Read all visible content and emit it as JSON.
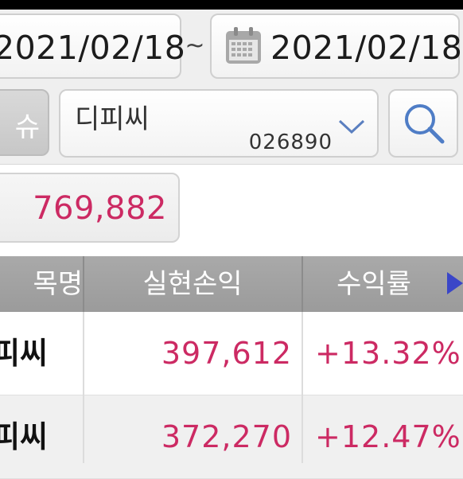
{
  "dates": {
    "start": "2021/02/18",
    "tilde": "~",
    "end": "2021/02/18"
  },
  "search": {
    "clipped_button_label": "슈",
    "stock_name": "디피씨",
    "stock_code": "026890"
  },
  "summary": {
    "total_value": "769,882"
  },
  "table": {
    "headers": {
      "name": "목명",
      "realized_pl": "실현손익",
      "return_rate": "수익률"
    },
    "rows": [
      {
        "name": "피씨",
        "realized_pl": "397,612",
        "return_rate": "+13.32%"
      },
      {
        "name": "피씨",
        "realized_pl": "372,270",
        "return_rate": "+12.47%"
      }
    ]
  },
  "icons": {
    "calendar": "calendar-icon",
    "dropdown": "chevron-down-icon",
    "search": "search-icon",
    "next": "next-arrow-icon"
  },
  "colors": {
    "accent_value": "#cc2a63",
    "header_bg": "#a3a3a3",
    "arrow": "#3a46c8"
  }
}
